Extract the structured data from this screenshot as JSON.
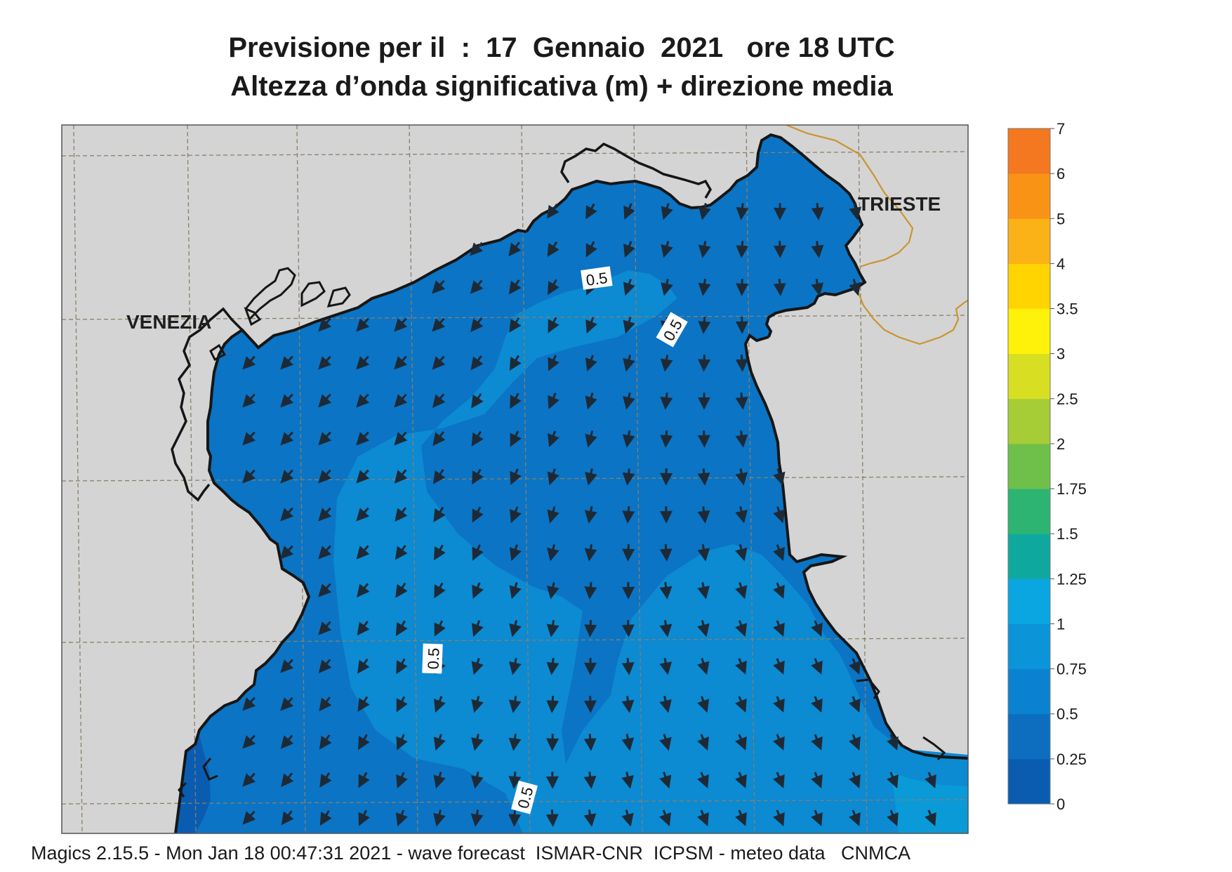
{
  "title_line1": "Previsione per il  :  17  Gennaio  2021   ore 18 UTC",
  "title_line2": "Altezza d’onda significativa (m) + direzione media",
  "places": [
    {
      "name": "VENEZIA"
    },
    {
      "name": "TRIESTE"
    }
  ],
  "contour_labels": [
    "0.5",
    "0.5",
    "0.5",
    "0.5"
  ],
  "footer": "Magics 2.15.5 - Mon Jan 18 00:47:31 2021 - wave forecast  ISMAR-CNR  ICPSM - meteo data   CNMCA",
  "legend": {
    "unit": "m",
    "ticks": [
      "0",
      "0.25",
      "0.5",
      "0.75",
      "1",
      "1.25",
      "1.5",
      "1.75",
      "2",
      "2.5",
      "3",
      "3.5",
      "4",
      "5",
      "6",
      "7"
    ],
    "colors": [
      "#0a5cb0",
      "#0d6ec0",
      "#0b82cf",
      "#0c94d8",
      "#0aa6e2",
      "#0fa89f",
      "#2db473",
      "#6fc04a",
      "#a6cc36",
      "#d8df22",
      "#fff20a",
      "#ffd400",
      "#fbb216",
      "#f99316",
      "#f47820",
      "#ec2b27",
      "#ec1268"
    ]
  },
  "colors": {
    "land": "#d4d4d4",
    "coast": "#161616",
    "border": "#c9952f",
    "grid": "#8a7f6a",
    "arrow": "#1d2a36"
  }
}
